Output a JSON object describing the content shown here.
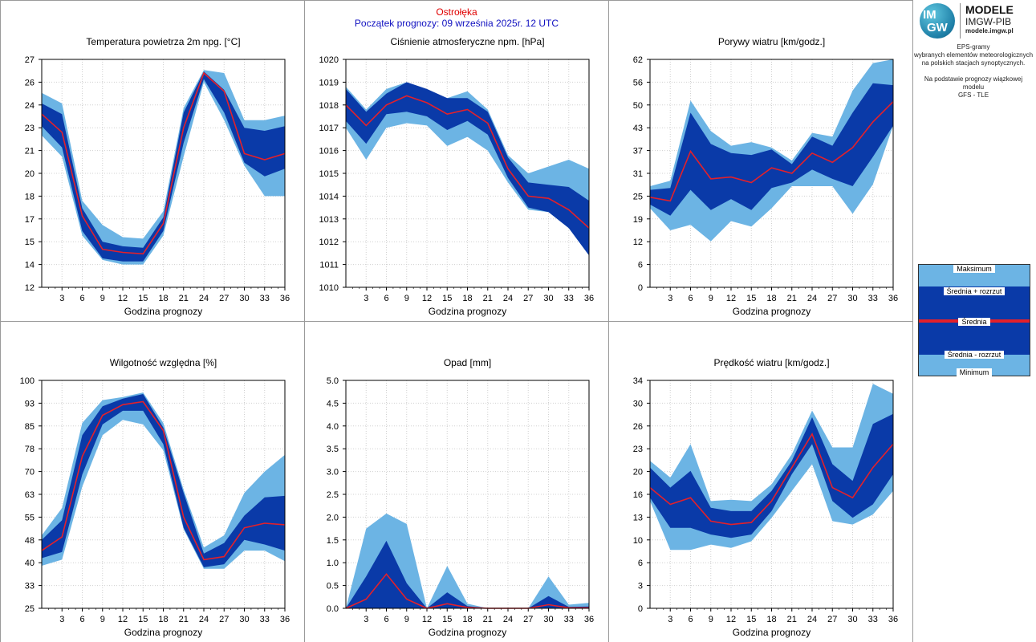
{
  "header": {
    "station": "Ostrołęka",
    "forecast_start": "Początek prognozy: 09 września 2025r. 12 UTC"
  },
  "logo": {
    "mark_top": "IM",
    "mark_bottom": "GW",
    "brand": "MODELE",
    "org": "IMGW-PIB",
    "url": "modele.imgw.pl"
  },
  "description": {
    "line1": "EPS-gramy",
    "line2": "wybranych elementów meteorologicznych",
    "line3": "na polskich stacjach  synoptycznych.",
    "line4": "Na podstawie prognozy wiązkowej modelu",
    "line5": "GFS - TLE"
  },
  "legend": {
    "max": "Maksimum",
    "mean_plus": "Średnia + rozrzut",
    "mean": "Średnia",
    "mean_minus": "Średnia - rozrzut",
    "min": "Minimum"
  },
  "colors": {
    "outer_band": "#6cb4e4",
    "inner_band": "#0a3aa8",
    "mean_line": "#e4202a",
    "grid": "#d0d0d0"
  },
  "chart_data": [
    {
      "type": "area",
      "title": "Temperatura powietrza 2m npg. [°C]",
      "xlabel": "Godzina prognozy",
      "x": [
        0,
        3,
        6,
        9,
        12,
        15,
        18,
        21,
        24,
        27,
        30,
        33,
        36
      ],
      "xticks": [
        "3",
        "6",
        "9",
        "12",
        "15",
        "18",
        "21",
        "24",
        "27",
        "30",
        "33",
        "36"
      ],
      "yticks": [
        "12",
        "14",
        "15",
        "17",
        "18",
        "20",
        "21",
        "23",
        "24",
        "26",
        "27"
      ],
      "ylim": [
        12,
        27
      ],
      "series": [
        {
          "name": "Maksimum",
          "values": [
            24.8,
            24.1,
            17.7,
            16.1,
            15.3,
            15.2,
            17.0,
            23.8,
            26.3,
            26.1,
            23.0,
            23.0,
            23.3
          ]
        },
        {
          "name": "Średnia + rozrzut",
          "values": [
            24.1,
            23.4,
            17.2,
            15.0,
            14.7,
            14.6,
            16.6,
            23.5,
            26.2,
            25.0,
            22.5,
            22.3,
            22.6
          ]
        },
        {
          "name": "Średnia",
          "values": [
            23.4,
            22.2,
            16.7,
            14.5,
            14.3,
            14.2,
            16.2,
            22.5,
            26.1,
            24.9,
            20.8,
            20.4,
            20.8
          ]
        },
        {
          "name": "Średnia - rozrzut",
          "values": [
            22.6,
            21.2,
            15.7,
            13.9,
            13.7,
            13.7,
            15.7,
            21.5,
            25.7,
            23.5,
            20.2,
            19.3,
            19.8
          ]
        },
        {
          "name": "Minimum",
          "values": [
            22.0,
            20.6,
            15.4,
            13.8,
            13.5,
            13.5,
            15.4,
            20.6,
            25.5,
            23.0,
            20.0,
            18.0,
            18.0
          ]
        }
      ]
    },
    {
      "type": "area",
      "title": "Ciśnienie atmosferyczne npm. [hPa]",
      "xlabel": "Godzina prognozy",
      "x": [
        0,
        3,
        6,
        9,
        12,
        15,
        18,
        21,
        24,
        27,
        30,
        33,
        36
      ],
      "xticks": [
        "3",
        "6",
        "9",
        "12",
        "15",
        "18",
        "21",
        "24",
        "27",
        "30",
        "33",
        "36"
      ],
      "yticks": [
        "1010",
        "1011",
        "1012",
        "1013",
        "1014",
        "1015",
        "1016",
        "1017",
        "1018",
        "1019",
        "1020"
      ],
      "ylim": [
        1010,
        1020
      ],
      "series": [
        {
          "name": "Maksimum",
          "values": [
            1018.8,
            1017.8,
            1018.7,
            1019.0,
            1018.6,
            1018.3,
            1018.6,
            1017.8,
            1015.8,
            1015.0,
            1015.3,
            1015.6,
            1015.2
          ]
        },
        {
          "name": "Średnia + rozrzut",
          "values": [
            1018.7,
            1017.7,
            1018.5,
            1019.0,
            1018.7,
            1018.3,
            1018.3,
            1017.7,
            1015.7,
            1014.6,
            1014.5,
            1014.4,
            1013.8
          ]
        },
        {
          "name": "Średnia",
          "values": [
            1018.0,
            1017.1,
            1018.0,
            1018.4,
            1018.1,
            1017.6,
            1017.8,
            1017.2,
            1015.2,
            1014.0,
            1013.9,
            1013.4,
            1012.6
          ]
        },
        {
          "name": "Średnia - rozrzut",
          "values": [
            1017.3,
            1016.3,
            1017.6,
            1017.7,
            1017.5,
            1016.9,
            1017.3,
            1016.7,
            1014.8,
            1013.5,
            1013.3,
            1012.6,
            1011.4
          ]
        },
        {
          "name": "Minimum",
          "values": [
            1017.0,
            1015.6,
            1017.0,
            1017.2,
            1017.1,
            1016.2,
            1016.6,
            1016.0,
            1014.6,
            1013.4,
            1013.3,
            1012.6,
            1011.4
          ]
        }
      ]
    },
    {
      "type": "area",
      "title": "Porywy wiatru [km/godz.]",
      "xlabel": "Godzina prognozy",
      "x": [
        0,
        3,
        6,
        9,
        12,
        15,
        18,
        21,
        24,
        27,
        30,
        33,
        36
      ],
      "xticks": [
        "3",
        "6",
        "9",
        "12",
        "15",
        "18",
        "21",
        "24",
        "27",
        "30",
        "33",
        "36"
      ],
      "yticks": [
        "0",
        "6",
        "12",
        "19",
        "25",
        "31",
        "37",
        "43",
        "50",
        "56",
        "62"
      ],
      "ylim": [
        0,
        62
      ],
      "series": [
        {
          "name": "Maksimum",
          "values": [
            27.5,
            29.0,
            50.8,
            42.5,
            38.5,
            39.5,
            38.0,
            34.5,
            42.0,
            41.0,
            53.5,
            61.0,
            62.0
          ]
        },
        {
          "name": "Średnia + rozrzut",
          "values": [
            26.5,
            27.0,
            47.5,
            39.0,
            36.5,
            36.0,
            37.5,
            33.5,
            41.0,
            38.5,
            47.5,
            55.5,
            55.0
          ]
        },
        {
          "name": "Średnia",
          "values": [
            24.5,
            23.5,
            37.0,
            29.5,
            30.0,
            28.5,
            32.5,
            31.0,
            36.5,
            34.0,
            38.0,
            45.0,
            50.5
          ]
        },
        {
          "name": "Średnia - rozrzut",
          "values": [
            22.5,
            19.5,
            26.5,
            21.0,
            24.0,
            21.0,
            27.0,
            28.5,
            32.0,
            29.5,
            27.5,
            35.5,
            44.0
          ]
        },
        {
          "name": "Minimum",
          "values": [
            21.5,
            15.5,
            17.0,
            12.5,
            18.0,
            16.5,
            21.5,
            27.5,
            27.5,
            27.5,
            20.0,
            28.0,
            44.0
          ]
        }
      ]
    },
    {
      "type": "area",
      "title": "Wilgotność względna [%]",
      "xlabel": "Godzina prognozy",
      "x": [
        0,
        3,
        6,
        9,
        12,
        15,
        18,
        21,
        24,
        27,
        30,
        33,
        36
      ],
      "xticks": [
        "3",
        "6",
        "9",
        "12",
        "15",
        "18",
        "21",
        "24",
        "27",
        "30",
        "33",
        "36"
      ],
      "yticks": [
        "25",
        "33",
        "40",
        "48",
        "55",
        "63",
        "70",
        "78",
        "85",
        "93",
        "100"
      ],
      "ylim": [
        25,
        100
      ],
      "series": [
        {
          "name": "Maksimum",
          "values": [
            49,
            58,
            86,
            93.5,
            94.5,
            96,
            86,
            64,
            45,
            49,
            63,
            70,
            75.5
          ]
        },
        {
          "name": "Średnia + rozrzut",
          "values": [
            47.5,
            54,
            82,
            91.5,
            94,
            95.5,
            84.5,
            63,
            43,
            46.5,
            55.5,
            61.5,
            62
          ]
        },
        {
          "name": "Średnia",
          "values": [
            44,
            48.5,
            75,
            88.5,
            92,
            93,
            83.5,
            55,
            41,
            42,
            51.5,
            53,
            52.5
          ]
        },
        {
          "name": "Średnia - rozrzut",
          "values": [
            41.5,
            43.5,
            69,
            85.5,
            90,
            90,
            79,
            51.5,
            38.5,
            39.5,
            47.5,
            46,
            44
          ]
        },
        {
          "name": "Minimum",
          "values": [
            39,
            41,
            65,
            82,
            87,
            85.5,
            77,
            51,
            38,
            38,
            44,
            44,
            40.5
          ]
        }
      ]
    },
    {
      "type": "area",
      "title": "Opad [mm]",
      "xlabel": "Godzina prognozy",
      "x": [
        0,
        3,
        6,
        9,
        12,
        15,
        18,
        21,
        24,
        27,
        30,
        33,
        36
      ],
      "xticks": [
        "3",
        "6",
        "9",
        "12",
        "15",
        "18",
        "21",
        "24",
        "27",
        "30",
        "33",
        "36"
      ],
      "yticks": [
        "0.0",
        "0.5",
        "1.0",
        "1.5",
        "2.0",
        "2.5",
        "3.0",
        "3.5",
        "4.0",
        "4.5",
        "5.0"
      ],
      "ylim": [
        0,
        5
      ],
      "series": [
        {
          "name": "Maksimum",
          "values": [
            0,
            1.75,
            2.08,
            1.85,
            0,
            0.93,
            0.1,
            0,
            0,
            0,
            0.7,
            0.08,
            0.12
          ]
        },
        {
          "name": "Średnia + rozrzut",
          "values": [
            0,
            0.7,
            1.48,
            0.55,
            0,
            0.35,
            0.05,
            0,
            0,
            0,
            0.27,
            0.03,
            0.04
          ]
        },
        {
          "name": "Średnia",
          "values": [
            0,
            0.2,
            0.75,
            0.2,
            0,
            0.1,
            0.02,
            0,
            0,
            0,
            0.08,
            0.01,
            0.01
          ]
        },
        {
          "name": "Średnia - rozrzut",
          "values": [
            0,
            0,
            0,
            0,
            0,
            0,
            0,
            0,
            0,
            0,
            0,
            0,
            0
          ]
        },
        {
          "name": "Minimum",
          "values": [
            0,
            0,
            0,
            0,
            0,
            0,
            0,
            0,
            0,
            0,
            0,
            0,
            0
          ]
        }
      ]
    },
    {
      "type": "area",
      "title": "Prędkość wiatru [km/godz.]",
      "xlabel": "Godzina prognozy",
      "x": [
        0,
        3,
        6,
        9,
        12,
        15,
        18,
        21,
        24,
        27,
        30,
        33,
        36
      ],
      "xticks": [
        "3",
        "6",
        "9",
        "12",
        "15",
        "18",
        "21",
        "24",
        "27",
        "30",
        "33",
        "36"
      ],
      "yticks": [
        "0",
        "3",
        "6",
        "10",
        "13",
        "16",
        "20",
        "23",
        "26",
        "30",
        "34"
      ],
      "ylim": [
        0,
        34
      ],
      "series": [
        {
          "name": "Maksimum",
          "values": [
            22,
            19.5,
            24.5,
            16,
            16.2,
            16,
            18.5,
            23,
            29.5,
            24,
            24,
            33.5,
            32
          ]
        },
        {
          "name": "Średnia + rozrzut",
          "values": [
            21,
            18,
            20.5,
            15,
            14.5,
            14.5,
            17.5,
            22,
            28.5,
            21.5,
            19,
            27.5,
            29
          ]
        },
        {
          "name": "Średnia",
          "values": [
            18,
            15.5,
            16.5,
            13,
            12.5,
            12.8,
            16,
            21,
            26,
            18,
            16.5,
            21,
            24.5
          ]
        },
        {
          "name": "Średnia - rozrzut",
          "values": [
            16.5,
            12,
            12,
            11,
            10.5,
            11,
            14.5,
            20,
            24.5,
            16,
            13.5,
            15.5,
            20
          ]
        },
        {
          "name": "Minimum",
          "values": [
            16,
            8.7,
            8.7,
            9.5,
            9,
            10,
            13.5,
            17.5,
            21.5,
            13,
            12.5,
            14,
            17.5
          ]
        }
      ]
    }
  ]
}
